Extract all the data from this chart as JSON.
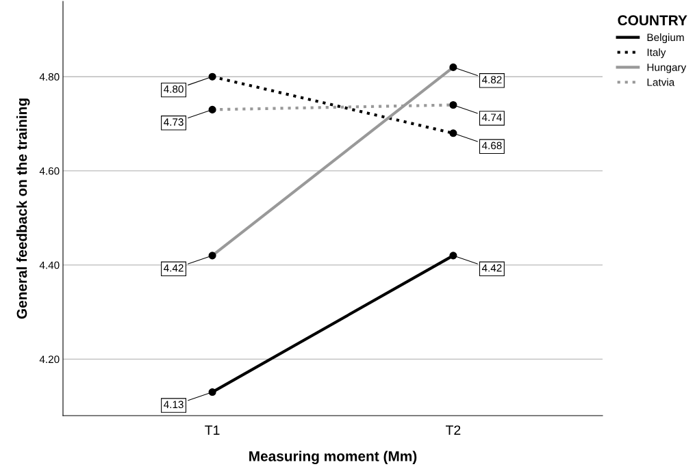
{
  "chart_data": {
    "type": "line",
    "xlabel": "Measuring moment (Mm)",
    "ylabel": "General feedback on the training",
    "categories": [
      "T1",
      "T2"
    ],
    "series": [
      {
        "name": "Belgium",
        "color": "#000000",
        "line_style": "solid",
        "values": [
          4.13,
          4.42
        ],
        "value_labels": [
          "4.13",
          "4.42"
        ]
      },
      {
        "name": "Italy",
        "color": "#000000",
        "line_style": "dotted",
        "values": [
          4.8,
          4.68
        ],
        "value_labels": [
          "4.80",
          "4.68"
        ]
      },
      {
        "name": "Hungary",
        "color": "#999999",
        "line_style": "solid",
        "values": [
          4.42,
          4.82
        ],
        "value_labels": [
          "4.42",
          "4.82"
        ]
      },
      {
        "name": "Latvia",
        "color": "#999999",
        "line_style": "dotted",
        "values": [
          4.73,
          4.74
        ],
        "value_labels": [
          "4.73",
          "4.74"
        ]
      }
    ],
    "ylim": [
      4.08,
      4.96
    ],
    "yticks": [
      {
        "value": 4.2,
        "label": "4.20"
      },
      {
        "value": 4.4,
        "label": "4.40"
      },
      {
        "value": 4.6,
        "label": "4.60"
      },
      {
        "value": 4.8,
        "label": "4.80"
      }
    ],
    "grid": "y",
    "legend": "top right",
    "legend_title": "COUNTRY",
    "marker": "circle"
  }
}
